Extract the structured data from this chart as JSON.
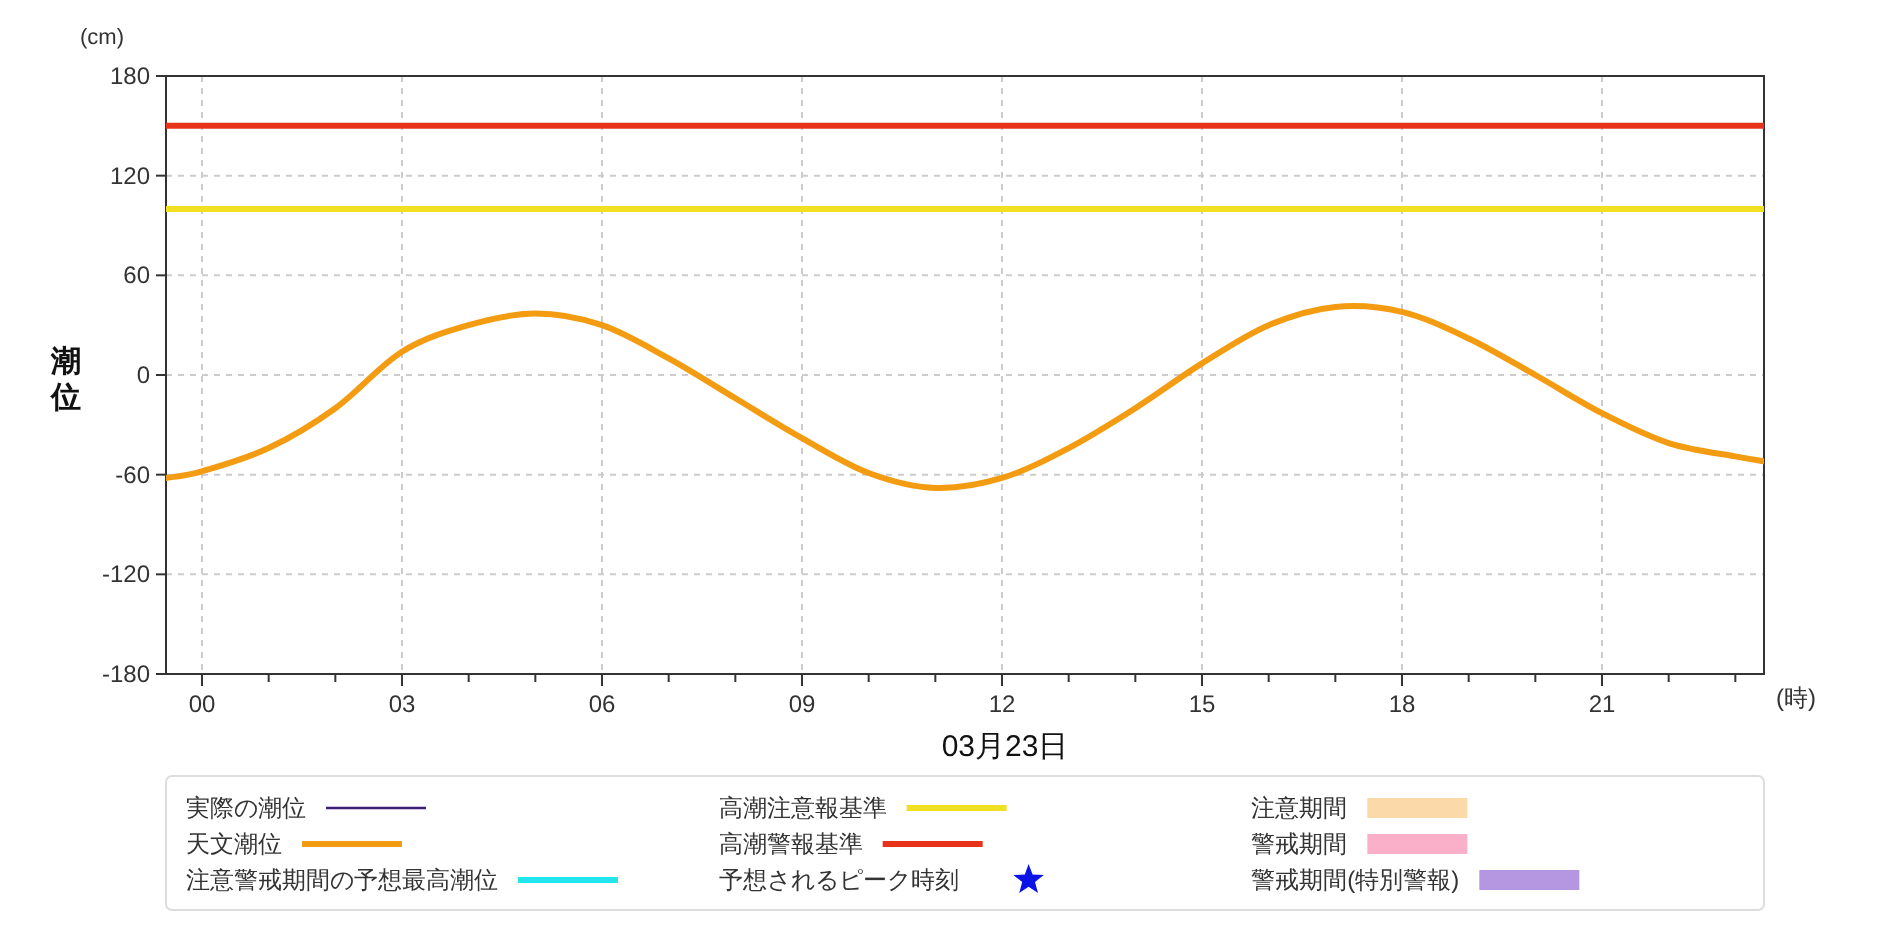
{
  "chart_data": {
    "type": "line",
    "xlabel": "03月23日",
    "ylabel": "潮位",
    "annotations": [
      "(cm)",
      "(時)"
    ],
    "xlim": [
      -0.54,
      23.43
    ],
    "ylim": [
      -180,
      180
    ],
    "xticks": [
      {
        "value": 0,
        "label": "00"
      },
      {
        "value": 1,
        "label": null
      },
      {
        "value": 2,
        "label": null
      },
      {
        "value": 3,
        "label": "03"
      },
      {
        "value": 4,
        "label": null
      },
      {
        "value": 5,
        "label": null
      },
      {
        "value": 6,
        "label": "06"
      },
      {
        "value": 7,
        "label": null
      },
      {
        "value": 8,
        "label": null
      },
      {
        "value": 9,
        "label": "09"
      },
      {
        "value": 10,
        "label": null
      },
      {
        "value": 11,
        "label": null
      },
      {
        "value": 12,
        "label": "12"
      },
      {
        "value": 13,
        "label": null
      },
      {
        "value": 14,
        "label": null
      },
      {
        "value": 15,
        "label": "15"
      },
      {
        "value": 16,
        "label": null
      },
      {
        "value": 17,
        "label": null
      },
      {
        "value": 18,
        "label": "18"
      },
      {
        "value": 19,
        "label": null
      },
      {
        "value": 20,
        "label": null
      },
      {
        "value": 21,
        "label": "21"
      },
      {
        "value": 22,
        "label": null
      },
      {
        "value": 23,
        "label": null
      }
    ],
    "yticks": [
      -180,
      -120,
      -60,
      0,
      60,
      120,
      180
    ],
    "grid": true,
    "legend": "bottom",
    "series": [
      {
        "name": "実際の潮位",
        "color": "#3d1f7a"
      },
      {
        "name": "天文潮位",
        "color": "#f39c12",
        "x": [
          -0.54,
          0,
          1,
          2,
          3,
          4,
          5,
          6,
          7,
          8,
          9,
          10,
          11,
          12,
          13,
          14,
          15,
          16,
          17,
          18,
          19,
          20,
          21,
          22,
          23,
          23.43
        ],
        "values": [
          -62,
          -58,
          -44,
          -20,
          14,
          30,
          37,
          30,
          10,
          -14,
          -38,
          -59,
          -68,
          -62,
          -44,
          -20,
          7,
          30,
          41,
          38,
          22,
          0,
          -23,
          -41,
          -49,
          -52
        ]
      },
      {
        "name": "注意警戒期間の予想最高潮位",
        "color": "#22e5f0"
      },
      {
        "name": "高潮注意報基準",
        "color": "#f0e020",
        "x": [
          -0.54,
          23.43
        ],
        "values": [
          100,
          100
        ]
      },
      {
        "name": "高潮警報基準",
        "color": "#e8321a",
        "x": [
          -0.54,
          23.43
        ],
        "values": [
          150,
          150
        ]
      },
      {
        "name": "予想されるピーク時刻",
        "type": "scatter",
        "marker": "star",
        "color": "#0a14e6"
      },
      {
        "name": "注意期間",
        "type": "area",
        "color": "#fcd9a8"
      },
      {
        "name": "警戒期間",
        "type": "area",
        "color": "#f9b0c8"
      },
      {
        "name": "警戒期間(特別警報)",
        "type": "area",
        "color": "#b497e0"
      }
    ]
  }
}
